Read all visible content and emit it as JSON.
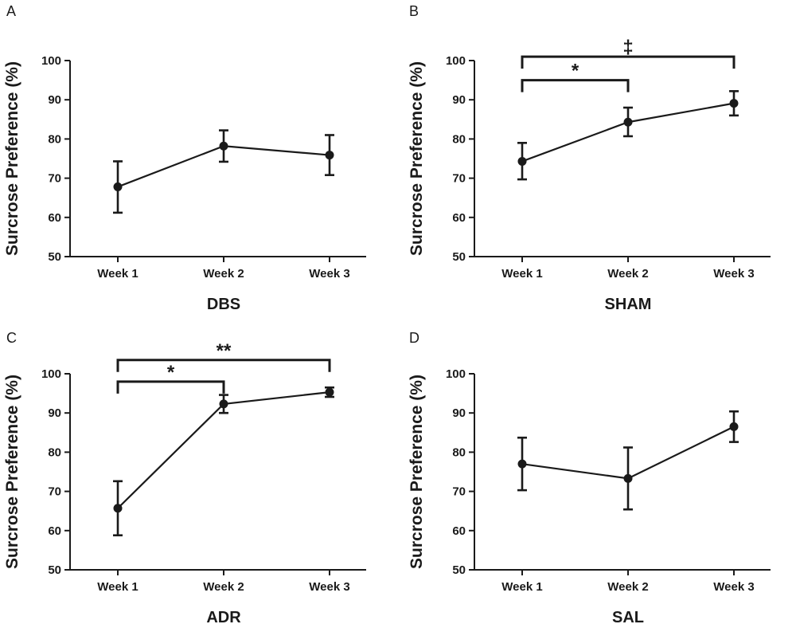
{
  "chart_data": [
    {
      "type": "line",
      "panel_letter": "A",
      "group_label": "DBS",
      "ylabel": "Surcrose Preference (%)",
      "categories": [
        "Week 1",
        "Week 2",
        "Week 3"
      ],
      "values": [
        67.8,
        78.2,
        75.9
      ],
      "error_low": [
        61.2,
        74.2,
        70.8
      ],
      "error_high": [
        74.3,
        82.2,
        81.0
      ],
      "ylim": [
        50,
        100
      ],
      "yticks": [
        "50",
        "60",
        "70",
        "80",
        "90",
        "100"
      ],
      "brackets": []
    },
    {
      "type": "line",
      "panel_letter": "B",
      "group_label": "SHAM",
      "ylabel": "Surcrose Preference (%)",
      "categories": [
        "Week 1",
        "Week 2",
        "Week 3"
      ],
      "values": [
        74.3,
        84.3,
        89.1
      ],
      "error_low": [
        69.7,
        80.7,
        86.0
      ],
      "error_high": [
        79.0,
        88.0,
        92.2
      ],
      "ylim": [
        50,
        100
      ],
      "yticks": [
        "50",
        "60",
        "70",
        "80",
        "90",
        "100"
      ],
      "brackets": [
        {
          "from": 0,
          "to": 1,
          "label": "*",
          "level": 95
        },
        {
          "from": 0,
          "to": 2,
          "label": "‡",
          "level": 101
        }
      ]
    },
    {
      "type": "line",
      "panel_letter": "C",
      "group_label": "ADR",
      "ylabel": "Surcrose Preference (%)",
      "categories": [
        "Week 1",
        "Week 2",
        "Week 3"
      ],
      "values": [
        65.7,
        92.3,
        95.3
      ],
      "error_low": [
        58.8,
        90.0,
        94.1
      ],
      "error_high": [
        72.6,
        94.6,
        96.5
      ],
      "ylim": [
        50,
        100
      ],
      "yticks": [
        "50",
        "60",
        "70",
        "80",
        "90",
        "100"
      ],
      "brackets": [
        {
          "from": 0,
          "to": 1,
          "label": "*",
          "level": 98
        },
        {
          "from": 0,
          "to": 2,
          "label": "**",
          "level": 103.5
        }
      ]
    },
    {
      "type": "line",
      "panel_letter": "D",
      "group_label": "SAL",
      "ylabel": "Surcrose Preference (%)",
      "categories": [
        "Week 1",
        "Week 2",
        "Week 3"
      ],
      "values": [
        77.0,
        73.3,
        86.5
      ],
      "error_low": [
        70.3,
        65.4,
        82.6
      ],
      "error_high": [
        83.7,
        81.2,
        90.4
      ],
      "ylim": [
        50,
        100
      ],
      "yticks": [
        "50",
        "60",
        "70",
        "80",
        "90",
        "100"
      ],
      "brackets": []
    }
  ]
}
